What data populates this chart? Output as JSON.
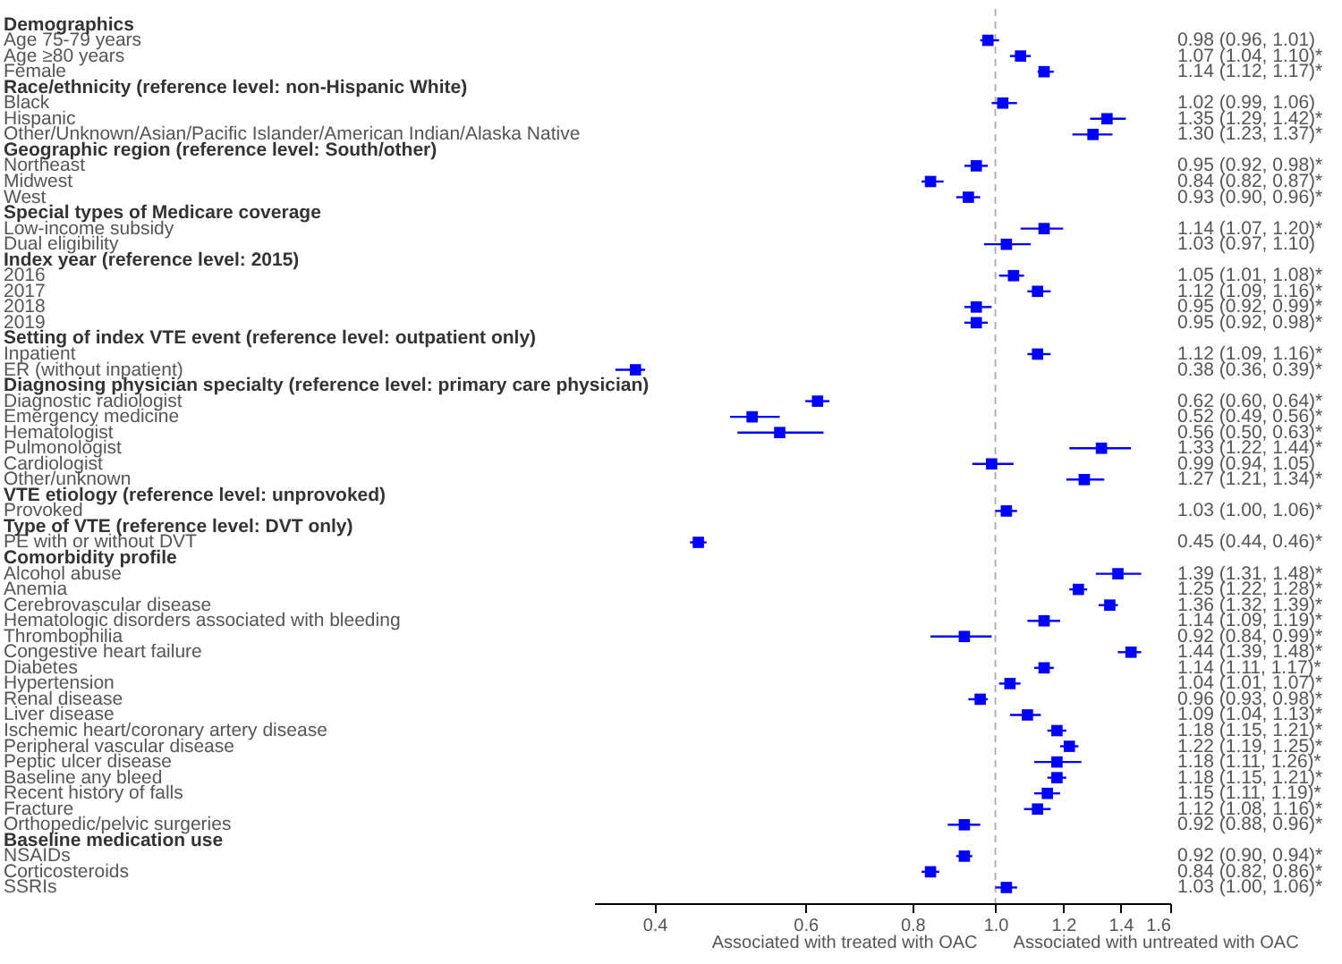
{
  "chart_data": {
    "type": "scatter",
    "orientation": "horizontal",
    "log": "x",
    "marker": "square",
    "grid": false,
    "categories": [
      "Demographics",
      "Age 75-79 years",
      "Age ≥80 years",
      "Female",
      "Race/ethnicity (reference level: non-Hispanic White)",
      "Black",
      "Hispanic",
      "Other/Unknown/Asian/Pacific Islander/American Indian/Alaska Native",
      "Geographic region (reference level: South/other)",
      "Northeast",
      "Midwest",
      "West",
      "Special types of Medicare coverage",
      "Low-income subsidy",
      "Dual eligibility",
      "Index year (reference level: 2015)",
      "2016",
      "2017",
      "2018",
      "2019",
      "Setting of index VTE event (reference level: outpatient only)",
      "Inpatient",
      "ER (without inpatient)",
      "Diagnosing physician specialty (reference level: primary care physician)",
      "Diagnostic radiologist",
      "Emergency medicine",
      "Hematologist",
      "Pulmonologist",
      "Cardiologist",
      "Other/unknown",
      "VTE etiology (reference level: unprovoked)",
      "Provoked",
      "Type of VTE (reference level: DVT only)",
      "PE with or without DVT",
      "Comorbidity profile",
      "Alcohol abuse",
      "Anemia",
      "Cerebrovascular disease",
      "Hematologic disorders associated with bleeding",
      "Thrombophilia",
      "Congestive heart failure",
      "Diabetes",
      "Hypertension",
      "Renal disease",
      "Liver disease",
      "Ischemic heart/coronary artery disease",
      "Peripheral vascular disease",
      "Peptic ulcer disease",
      "Baseline any bleed",
      "Recent history of falls",
      "Fracture",
      "Orthopedic/pelvic surgeries",
      "Baseline medication use",
      "NSAIDs",
      "Corticosteroids",
      "SSRIs"
    ],
    "series": [
      {
        "color": "#0000ff",
        "values": [
          null,
          0.98,
          1.07,
          1.14,
          null,
          1.02,
          1.35,
          1.3,
          null,
          0.95,
          0.84,
          0.93,
          null,
          1.14,
          1.03,
          null,
          1.05,
          1.12,
          0.95,
          0.95,
          null,
          1.12,
          0.38,
          null,
          0.62,
          0.52,
          0.56,
          1.33,
          0.99,
          1.27,
          null,
          1.03,
          null,
          0.45,
          null,
          1.39,
          1.25,
          1.36,
          1.14,
          0.92,
          1.44,
          1.14,
          1.04,
          0.96,
          1.09,
          1.18,
          1.22,
          1.18,
          1.18,
          1.15,
          1.12,
          0.92,
          null,
          0.92,
          0.84,
          1.03
        ],
        "errors": [
          null,
          [
            0.96,
            1.01
          ],
          [
            1.04,
            1.1
          ],
          [
            1.12,
            1.17
          ],
          null,
          [
            0.99,
            1.06
          ],
          [
            1.29,
            1.42
          ],
          [
            1.23,
            1.37
          ],
          null,
          [
            0.92,
            0.98
          ],
          [
            0.82,
            0.87
          ],
          [
            0.9,
            0.96
          ],
          null,
          [
            1.07,
            1.2
          ],
          [
            0.97,
            1.1
          ],
          null,
          [
            1.01,
            1.08
          ],
          [
            1.09,
            1.16
          ],
          [
            0.92,
            0.99
          ],
          [
            0.92,
            0.98
          ],
          null,
          [
            1.09,
            1.16
          ],
          [
            0.36,
            0.39
          ],
          null,
          [
            0.6,
            0.64
          ],
          [
            0.49,
            0.56
          ],
          [
            0.5,
            0.63
          ],
          [
            1.22,
            1.44
          ],
          [
            0.94,
            1.05
          ],
          [
            1.21,
            1.34
          ],
          null,
          [
            1.0,
            1.06
          ],
          null,
          [
            0.44,
            0.46
          ],
          null,
          [
            1.31,
            1.48
          ],
          [
            1.22,
            1.28
          ],
          [
            1.32,
            1.39
          ],
          [
            1.09,
            1.19
          ],
          [
            0.84,
            0.99
          ],
          [
            1.39,
            1.48
          ],
          [
            1.11,
            1.17
          ],
          [
            1.01,
            1.07
          ],
          [
            0.93,
            0.98
          ],
          [
            1.04,
            1.13
          ],
          [
            1.15,
            1.21
          ],
          [
            1.19,
            1.25
          ],
          [
            1.11,
            1.26
          ],
          [
            1.15,
            1.21
          ],
          [
            1.11,
            1.19
          ],
          [
            1.08,
            1.16
          ],
          [
            0.88,
            0.96
          ],
          null,
          [
            0.9,
            0.94
          ],
          [
            0.82,
            0.86
          ],
          [
            1.0,
            1.06
          ]
        ],
        "value_labels": [
          null,
          "0.98 (0.96, 1.01)",
          "1.07 (1.04, 1.10)*",
          "1.14 (1.12, 1.17)*",
          null,
          "1.02 (0.99, 1.06)",
          "1.35 (1.29, 1.42)*",
          "1.30 (1.23, 1.37)*",
          null,
          "0.95 (0.92, 0.98)*",
          "0.84 (0.82, 0.87)*",
          "0.93 (0.90, 0.96)*",
          null,
          "1.14 (1.07, 1.20)*",
          "1.03 (0.97, 1.10)",
          null,
          "1.05 (1.01, 1.08)*",
          "1.12 (1.09, 1.16)*",
          "0.95 (0.92, 0.99)*",
          "0.95 (0.92, 0.98)*",
          null,
          "1.12 (1.09, 1.16)*",
          "0.38 (0.36, 0.39)*",
          null,
          "0.62 (0.60, 0.64)*",
          "0.52 (0.49, 0.56)*",
          "0.56 (0.50, 0.63)*",
          "1.33 (1.22, 1.44)*",
          "0.99 (0.94, 1.05)",
          "1.27 (1.21, 1.34)*",
          null,
          "1.03 (1.00, 1.06)*",
          null,
          "0.45 (0.44, 0.46)*",
          null,
          "1.39 (1.31, 1.48)*",
          "1.25 (1.22, 1.28)*",
          "1.36 (1.32, 1.39)*",
          "1.14 (1.09, 1.19)*",
          "0.92 (0.84, 0.99)*",
          "1.44 (1.39, 1.48)*",
          "1.14 (1.11, 1.17)*",
          "1.04 (1.01, 1.07)*",
          "0.96 (0.93, 0.98)*",
          "1.09 (1.04, 1.13)*",
          "1.18 (1.15, 1.21)*",
          "1.22 (1.19, 1.25)*",
          "1.18 (1.11, 1.26)*",
          "1.18 (1.15, 1.21)*",
          "1.15 (1.11, 1.19)*",
          "1.12 (1.08, 1.16)*",
          "0.92 (0.88, 0.96)*",
          null,
          "0.92 (0.90, 0.94)*",
          "0.84 (0.82, 0.86)*",
          "1.03 (1.00, 1.06)*"
        ]
      }
    ],
    "xlim": [
      0.34,
      1.6
    ],
    "xticks": [
      0.4,
      0.6,
      0.8,
      {
        "value": 1.0,
        "label": "1.0"
      },
      1.2,
      1.4,
      1.6
    ],
    "ref_lines": [
      {
        "axis": "x",
        "value": 1.0,
        "color": "#b0b0b0",
        "line_style": "dashed"
      }
    ],
    "annotations": [
      "Associated with treated with OAC",
      "Associated with untreated with OAC"
    ]
  }
}
